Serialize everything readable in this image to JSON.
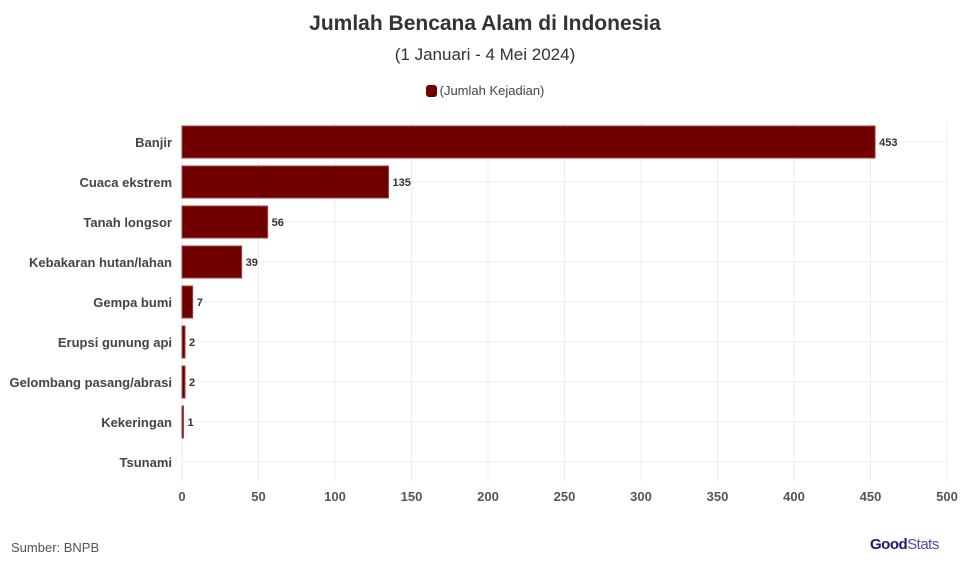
{
  "chart_data": {
    "type": "bar",
    "orientation": "horizontal",
    "title": "Jumlah Bencana Alam di Indonesia",
    "subtitle": "(1 Januari - 4 Mei 2024)",
    "categories": [
      "Banjir",
      "Cuaca ekstrem",
      "Tanah longsor",
      "Kebakaran hutan/lahan",
      "Gempa bumi",
      "Erupsi gunung api",
      "Gelombang pasang/abrasi",
      "Kekeringan",
      "Tsunami"
    ],
    "series": [
      {
        "name": "(Jumlah Kejadian)",
        "values": [
          453,
          135,
          56,
          39,
          7,
          2,
          2,
          1,
          0
        ],
        "color": "#700000"
      }
    ],
    "data_labels": [
      "453",
      "135",
      "56",
      "39",
      "7",
      "2",
      "2",
      "1",
      ""
    ],
    "xlim": [
      0,
      500
    ],
    "xticks": [
      0,
      50,
      100,
      150,
      200,
      250,
      300,
      350,
      400,
      450,
      500
    ],
    "grid": true,
    "legend_position": "top-center"
  },
  "footer": {
    "source": "Sumber: BNPB",
    "logo_good": "Good",
    "logo_stats": "Stats"
  }
}
